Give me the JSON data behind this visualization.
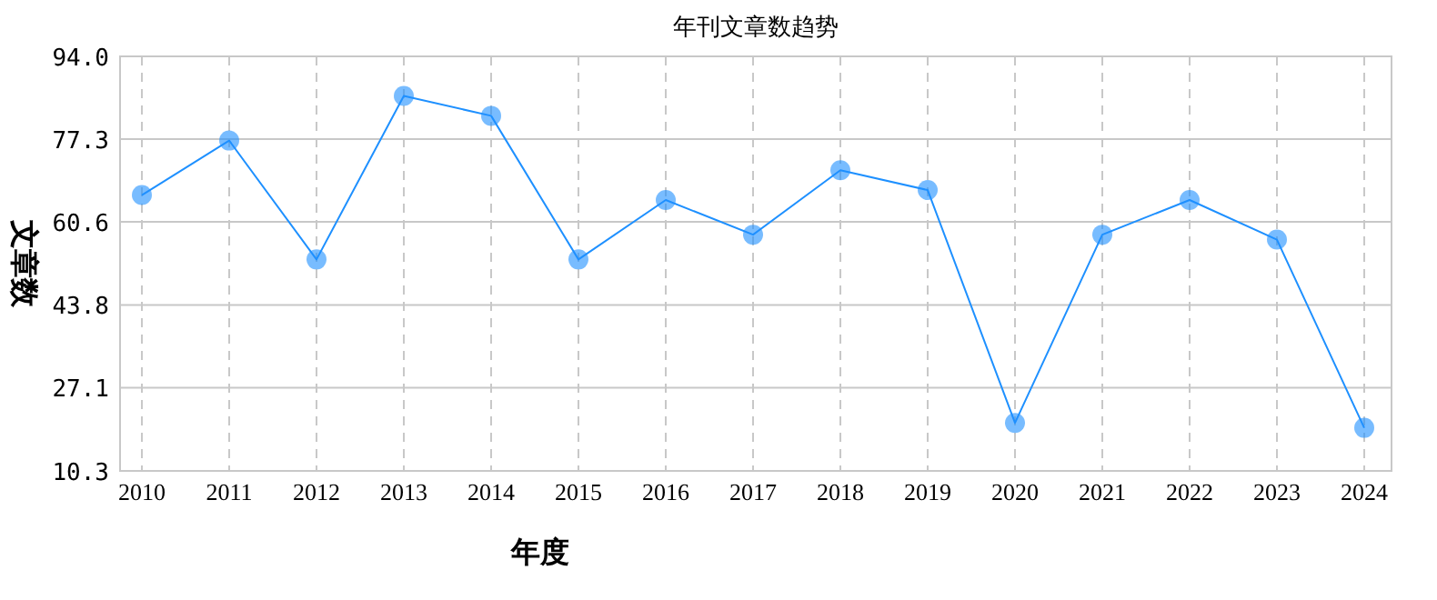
{
  "chart_data": {
    "type": "line",
    "title": "年刊文章数趋势",
    "xlabel": "年度",
    "ylabel": "文章数",
    "categories": [
      "2010",
      "2011",
      "2012",
      "2013",
      "2014",
      "2015",
      "2016",
      "2017",
      "2018",
      "2019",
      "2020",
      "2021",
      "2022",
      "2023",
      "2024"
    ],
    "series": [
      {
        "color": "#1e90ff",
        "values": [
          66,
          77,
          53,
          86,
          82,
          53,
          65,
          58,
          71,
          67,
          20,
          58,
          65,
          57,
          19
        ]
      }
    ],
    "ylim": [
      10.3,
      94.0
    ],
    "yticks": [
      10.3,
      27.1,
      43.8,
      60.6,
      77.3,
      {
        "value": 94.0,
        "label": "94.0"
      }
    ],
    "grid": true,
    "marker": "circle",
    "line_style": "solid"
  }
}
